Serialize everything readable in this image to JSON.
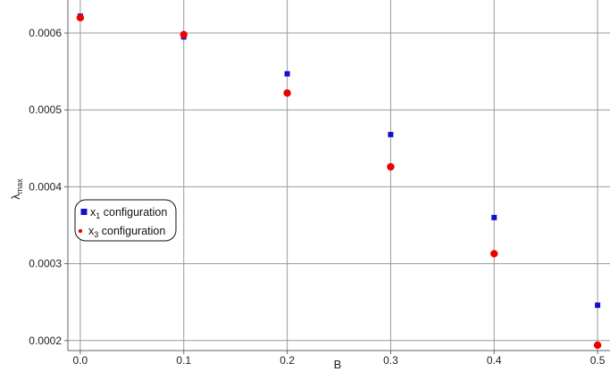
{
  "chart_data": {
    "type": "scatter",
    "title": "",
    "xlabel": "B",
    "ylabel": "λ",
    "ylabel_subscript": "max",
    "xlim": [
      -0.012,
      0.512
    ],
    "ylim": [
      0.000187,
      0.000643
    ],
    "grid": true,
    "legend_position": "middle-left",
    "x_ticks": [
      0.0,
      0.1,
      0.2,
      0.3,
      0.4,
      0.5
    ],
    "x_tick_labels": [
      "0.0",
      "0.1",
      "0.2",
      "0.3",
      "0.4",
      "0.5"
    ],
    "y_ticks": [
      0.0002,
      0.0003,
      0.0004,
      0.0005,
      0.0006
    ],
    "y_tick_labels": [
      "0.0002",
      "0.0003",
      "0.0004",
      "0.0005",
      "0.0006"
    ],
    "series": [
      {
        "name": "x1 configuration",
        "legend_main": "x",
        "legend_sub": "1",
        "legend_rest": " configuration",
        "marker": "square",
        "color": "#1010cc",
        "x": [
          0.0,
          0.1,
          0.2,
          0.3,
          0.4,
          0.5
        ],
        "y": [
          0.000622,
          0.000595,
          0.000547,
          0.000468,
          0.00036,
          0.000246
        ]
      },
      {
        "name": "x3 configuration",
        "legend_main": "x",
        "legend_sub": "3",
        "legend_rest": " configuration",
        "marker": "circle",
        "color": "#ee0000",
        "x": [
          0.0,
          0.1,
          0.2,
          0.3,
          0.4,
          0.5
        ],
        "y": [
          0.00062,
          0.000598,
          0.000522,
          0.000426,
          0.000313,
          0.000194
        ]
      }
    ]
  }
}
